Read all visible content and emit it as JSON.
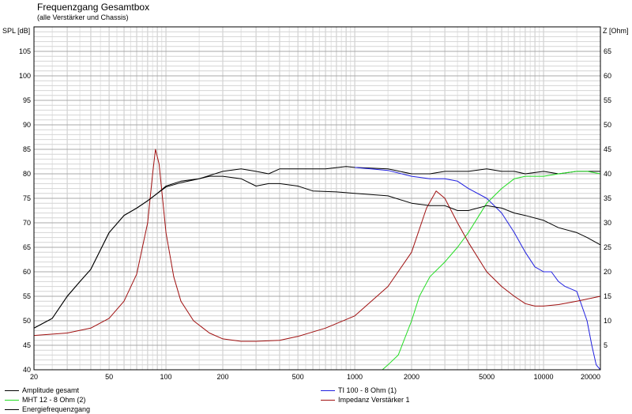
{
  "chart_data": {
    "type": "line",
    "title": "Frequenzgang Gesamtbox",
    "subtitle": "(alle Verstärker und Chassis)",
    "ylabel_left": "SPL [dB]",
    "ylabel_right": "Z [Ohm]",
    "x_scale": "log",
    "xlim": [
      20,
      20000
    ],
    "ylim": [
      40,
      110
    ],
    "ylim_right": [
      0,
      70
    ],
    "x_ticks": [
      20,
      50,
      100,
      200,
      500,
      1000,
      2000,
      5000,
      10000,
      20000
    ],
    "x_tick_labels": [
      "20",
      "50",
      "100",
      "200",
      "500",
      "1000",
      "2000",
      "5000",
      "10000",
      "20000"
    ],
    "y_ticks": [
      40,
      45,
      50,
      55,
      60,
      65,
      70,
      75,
      80,
      85,
      90,
      95,
      100,
      105
    ],
    "y_ticks_right": [
      5,
      10,
      15,
      20,
      25,
      30,
      35,
      40,
      45,
      50,
      55,
      60,
      65
    ],
    "grid": true,
    "legend_position": "bottom",
    "series": [
      {
        "name": "Amplitude gesamt",
        "color": "#000000",
        "points": [
          [
            20,
            48.5
          ],
          [
            25,
            50.5
          ],
          [
            30,
            55
          ],
          [
            35,
            58
          ],
          [
            40,
            60.5
          ],
          [
            50,
            68
          ],
          [
            60,
            71.5
          ],
          [
            70,
            73
          ],
          [
            80,
            74.5
          ],
          [
            90,
            76
          ],
          [
            100,
            77.5
          ],
          [
            120,
            78.5
          ],
          [
            150,
            79
          ],
          [
            200,
            80.5
          ],
          [
            250,
            81
          ],
          [
            300,
            80.5
          ],
          [
            350,
            80
          ],
          [
            400,
            81
          ],
          [
            500,
            81
          ],
          [
            700,
            81
          ],
          [
            900,
            81.5
          ],
          [
            1000,
            81.3
          ],
          [
            1500,
            81
          ],
          [
            2000,
            80
          ],
          [
            2500,
            80
          ],
          [
            3000,
            80.5
          ],
          [
            4000,
            80.5
          ],
          [
            5000,
            81
          ],
          [
            6000,
            80.5
          ],
          [
            7000,
            80.5
          ],
          [
            8000,
            80
          ],
          [
            10000,
            80.5
          ],
          [
            12000,
            80
          ],
          [
            15000,
            80.5
          ],
          [
            20000,
            80.5
          ]
        ]
      },
      {
        "name": "TI 100 - 8 Ohm (1)",
        "color": "#2020e0",
        "points": [
          [
            1000,
            81.3
          ],
          [
            1500,
            80.7
          ],
          [
            2000,
            79.5
          ],
          [
            2500,
            79
          ],
          [
            3000,
            79
          ],
          [
            3500,
            78.5
          ],
          [
            4000,
            77
          ],
          [
            5000,
            75
          ],
          [
            6000,
            72
          ],
          [
            7000,
            68
          ],
          [
            8000,
            64
          ],
          [
            9000,
            61
          ],
          [
            10000,
            60
          ],
          [
            11000,
            60
          ],
          [
            12000,
            58
          ],
          [
            13000,
            57
          ],
          [
            15000,
            56
          ],
          [
            17000,
            50
          ],
          [
            18000,
            45
          ],
          [
            19000,
            41
          ],
          [
            20000,
            40
          ]
        ]
      },
      {
        "name": "MHT 12 - 8 Ohm (2)",
        "color": "#22dd22",
        "points": [
          [
            20,
            40
          ],
          [
            1400,
            40
          ],
          [
            1500,
            41
          ],
          [
            1700,
            43
          ],
          [
            2000,
            50
          ],
          [
            2200,
            55
          ],
          [
            2500,
            59
          ],
          [
            3000,
            62
          ],
          [
            3500,
            65
          ],
          [
            4000,
            68
          ],
          [
            5000,
            74
          ],
          [
            6000,
            77
          ],
          [
            7000,
            79
          ],
          [
            8000,
            79.5
          ],
          [
            10000,
            79.5
          ],
          [
            12000,
            80
          ],
          [
            15000,
            80.5
          ],
          [
            17000,
            80.5
          ],
          [
            20000,
            80
          ]
        ]
      },
      {
        "name": "Impedanz Verstärker 1",
        "color": "#a01010",
        "axis": "right",
        "points": [
          [
            20,
            7
          ],
          [
            30,
            7.5
          ],
          [
            40,
            8.5
          ],
          [
            50,
            10.5
          ],
          [
            60,
            14
          ],
          [
            70,
            19.5
          ],
          [
            80,
            30
          ],
          [
            85,
            40
          ],
          [
            88,
            45
          ],
          [
            92,
            42
          ],
          [
            100,
            28
          ],
          [
            110,
            19
          ],
          [
            120,
            14
          ],
          [
            140,
            10
          ],
          [
            170,
            7.5
          ],
          [
            200,
            6.3
          ],
          [
            250,
            5.8
          ],
          [
            300,
            5.8
          ],
          [
            400,
            6
          ],
          [
            500,
            6.8
          ],
          [
            700,
            8.5
          ],
          [
            1000,
            11
          ],
          [
            1500,
            17
          ],
          [
            2000,
            24
          ],
          [
            2400,
            33
          ],
          [
            2700,
            36.5
          ],
          [
            3000,
            35
          ],
          [
            3500,
            30
          ],
          [
            4000,
            26
          ],
          [
            5000,
            20
          ],
          [
            6000,
            17
          ],
          [
            7000,
            15
          ],
          [
            8000,
            13.5
          ],
          [
            9000,
            13
          ],
          [
            10000,
            13
          ],
          [
            12000,
            13.3
          ],
          [
            15000,
            14
          ],
          [
            20000,
            15
          ]
        ]
      },
      {
        "name": "Energiefrequenzgang",
        "color": "#000000",
        "points": [
          [
            20,
            48.5
          ],
          [
            25,
            50.5
          ],
          [
            30,
            55
          ],
          [
            35,
            58
          ],
          [
            40,
            60.5
          ],
          [
            50,
            68
          ],
          [
            60,
            71.5
          ],
          [
            70,
            73
          ],
          [
            80,
            74.5
          ],
          [
            90,
            76
          ],
          [
            100,
            77.3
          ],
          [
            120,
            78.2
          ],
          [
            150,
            79
          ],
          [
            170,
            79.5
          ],
          [
            200,
            79.5
          ],
          [
            250,
            79
          ],
          [
            300,
            77.5
          ],
          [
            350,
            78
          ],
          [
            400,
            78
          ],
          [
            500,
            77.5
          ],
          [
            600,
            76.5
          ],
          [
            800,
            76.3
          ],
          [
            1000,
            76
          ],
          [
            1500,
            75.5
          ],
          [
            2000,
            74
          ],
          [
            2500,
            73.5
          ],
          [
            3000,
            73.5
          ],
          [
            3500,
            72.5
          ],
          [
            4000,
            72.5
          ],
          [
            5000,
            73.5
          ],
          [
            6000,
            73
          ],
          [
            7000,
            72
          ],
          [
            8000,
            71.5
          ],
          [
            10000,
            70.5
          ],
          [
            12000,
            69
          ],
          [
            15000,
            68
          ],
          [
            17000,
            67
          ],
          [
            20000,
            65.5
          ]
        ]
      }
    ]
  }
}
